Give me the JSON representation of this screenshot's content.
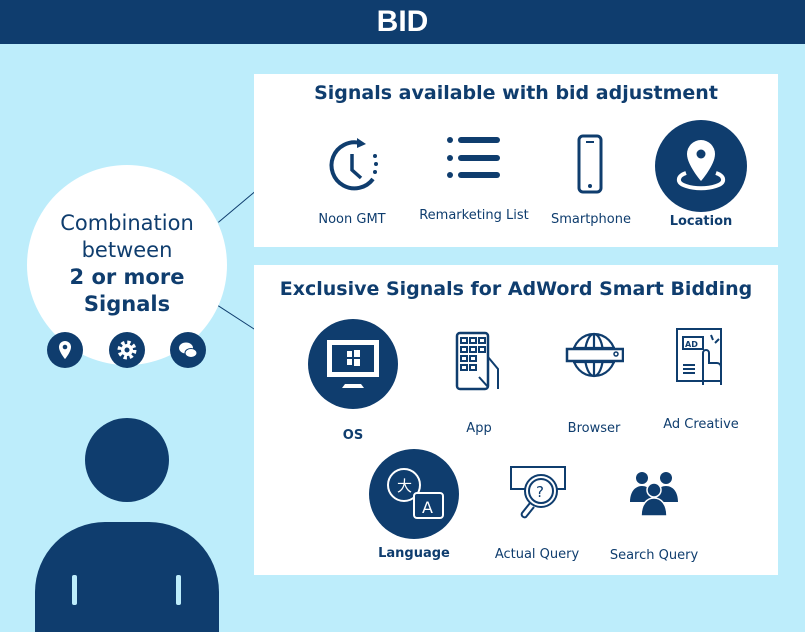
{
  "header": {
    "title": "BID"
  },
  "combination": {
    "line1": "Combination",
    "line2": "between",
    "line3": "2 or more",
    "line4": "Signals",
    "icons": [
      "location-pin-icon",
      "gear-icon",
      "chat-bubbles-icon"
    ]
  },
  "bid_adjustment": {
    "title": "Signals available with bid adjustment",
    "items": [
      {
        "label": "Noon GMT",
        "icon": "clock-icon"
      },
      {
        "label": "Remarketing List",
        "icon": "list-icon"
      },
      {
        "label": "Smartphone",
        "icon": "smartphone-icon"
      },
      {
        "label": "Location",
        "icon": "location-icon",
        "highlighted": true
      }
    ]
  },
  "smart_bidding": {
    "title": "Exclusive Signals for AdWord Smart Bidding",
    "items": [
      {
        "label": "OS",
        "icon": "monitor-windows-icon",
        "highlighted": true
      },
      {
        "label": "App",
        "icon": "phone-app-icon"
      },
      {
        "label": "Browser",
        "icon": "globe-search-icon"
      },
      {
        "label": "Ad Creative",
        "icon": "ad-click-icon"
      },
      {
        "label": "Language",
        "icon": "translate-icon",
        "highlighted": true
      },
      {
        "label": "Actual Query",
        "icon": "query-magnifier-icon"
      },
      {
        "label": "Search Query",
        "icon": "people-group-icon"
      }
    ]
  },
  "colors": {
    "navy": "#0f3d6e",
    "background": "#bdedfb",
    "panel": "#ffffff"
  }
}
